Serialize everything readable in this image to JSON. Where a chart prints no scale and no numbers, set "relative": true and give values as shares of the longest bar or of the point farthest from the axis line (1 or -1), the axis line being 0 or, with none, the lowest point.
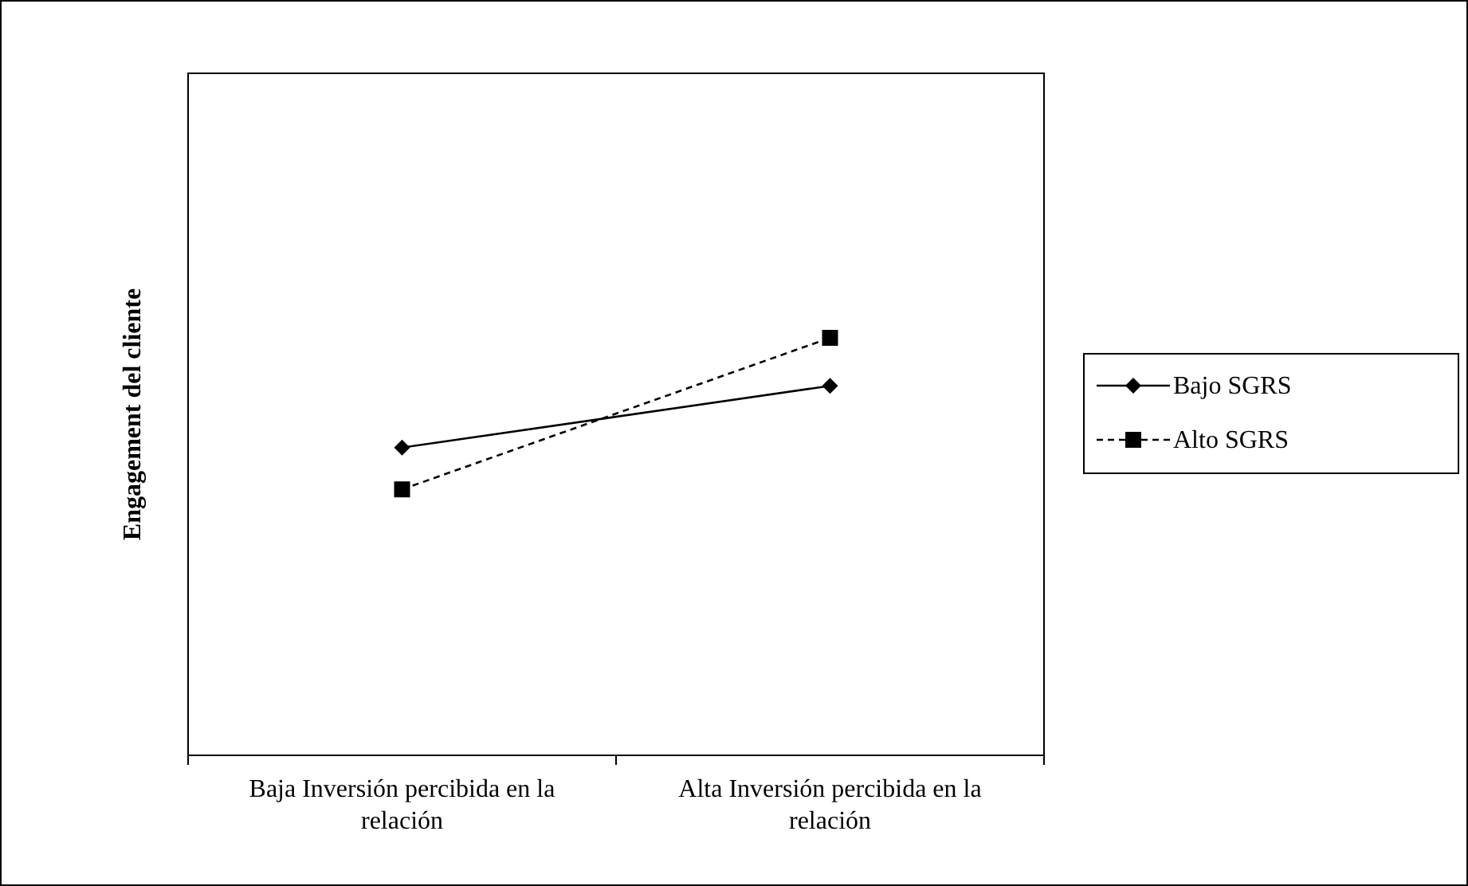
{
  "chart_data": {
    "type": "line",
    "relative": true,
    "ylabel": "Engagement del cliente",
    "categories": [
      "Baja Inversión percibida en la relación",
      "Alta Inversión percibida en la relación"
    ],
    "series": [
      {
        "name": "Bajo SGRS",
        "color": "#000000",
        "values": [
          0.737,
          0.885
        ],
        "marker": "diamond",
        "line_style": "solid"
      },
      {
        "name": "Alto SGRS",
        "color": "#000000",
        "values": [
          0.637,
          1
        ],
        "marker": "square",
        "line_style": "dashed"
      }
    ],
    "legend": "right"
  }
}
